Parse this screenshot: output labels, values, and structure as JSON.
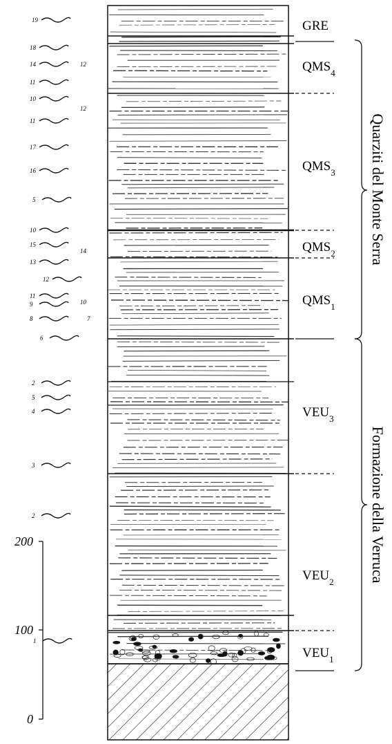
{
  "units": [
    {
      "name": "GRE"
    },
    {
      "name": "QMS",
      "sub": "4"
    },
    {
      "name": "QMS",
      "sub": "3"
    },
    {
      "name": "QMS",
      "sub": "2"
    },
    {
      "name": "QMS",
      "sub": "1"
    },
    {
      "name": "VEU",
      "sub": "3"
    },
    {
      "name": "VEU",
      "sub": "2"
    },
    {
      "name": "VEU",
      "sub": "1"
    }
  ],
  "formations": [
    "Quarziti del Monte Serra",
    "Formazione della Verruca"
  ],
  "scale_labels": [
    "200",
    "100",
    "0"
  ],
  "symbol_numbers": [
    "19",
    "18",
    "12",
    "14",
    "11",
    "10",
    "12",
    "11",
    "17",
    "16",
    "5",
    "10",
    "15",
    "14",
    "13",
    "12",
    "11",
    "10",
    "9",
    "8",
    "7",
    "6",
    "2",
    "5",
    "4",
    "3",
    "2",
    "1"
  ]
}
